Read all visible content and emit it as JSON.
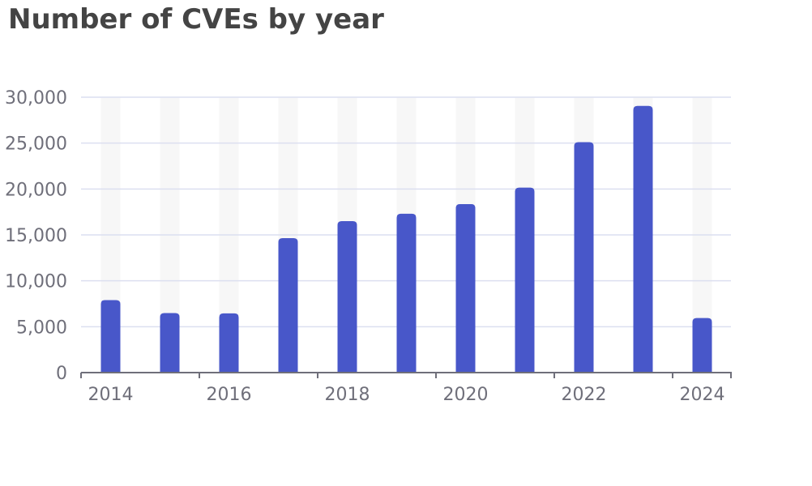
{
  "chart_data": {
    "type": "bar",
    "title": "Number of CVEs by year",
    "xlabel": "",
    "ylabel": "",
    "categories": [
      "2014",
      "2015",
      "2016",
      "2017",
      "2018",
      "2019",
      "2020",
      "2021",
      "2022",
      "2023",
      "2024"
    ],
    "values": [
      7900,
      6480,
      6450,
      14650,
      16500,
      17300,
      18350,
      20150,
      25100,
      29050,
      5950
    ],
    "x_tick_labels": [
      "2014",
      "2016",
      "2018",
      "2020",
      "2022",
      "2024"
    ],
    "y_tick_labels": [
      "0",
      "5,000",
      "10,000",
      "15,000",
      "20,000",
      "25,000",
      "30,000"
    ],
    "ylim": [
      0,
      30000
    ],
    "grid": true,
    "legend": "none"
  },
  "colors": {
    "bar": "#4857c9",
    "bar_background": "#f7f7f7",
    "gridline": "#dcdff0",
    "axis": "#6f6f7a",
    "tick_text": "#6f6f7a",
    "title": "#444444"
  }
}
